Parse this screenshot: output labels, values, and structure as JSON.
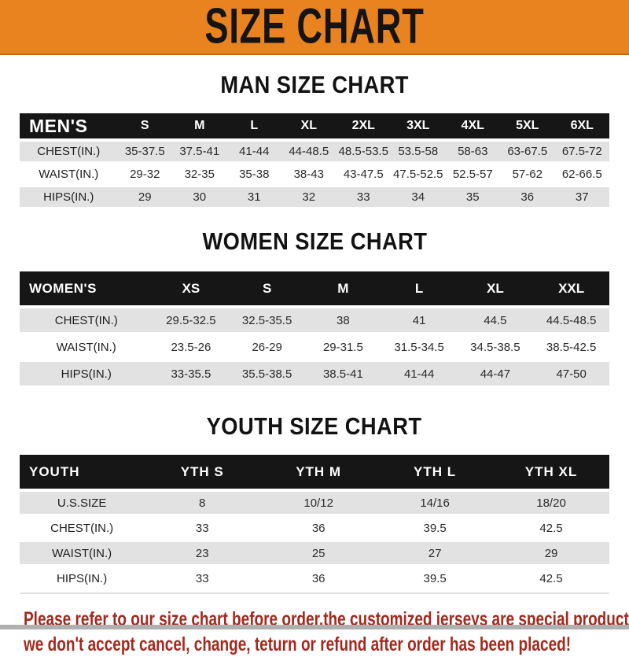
{
  "colors": {
    "banner-orange": "#E8831F",
    "banner-text": "#141414",
    "header-black": "#161616",
    "stripe-gray": "#E2E2E2",
    "footer-red": "#A2291E"
  },
  "banner": {
    "title": "SIZE CHART"
  },
  "sections": [
    {
      "id": "men",
      "heading": "MAN SIZE CHART",
      "table": {
        "header": [
          "MEN'S",
          "S",
          "M",
          "L",
          "XL",
          "2XL",
          "3XL",
          "4XL",
          "5XL",
          "6XL"
        ],
        "rows": [
          [
            "CHEST(IN.)",
            "35-37.5",
            "37.5-41",
            "41-44",
            "44-48.5",
            "48.5-53.5",
            "53.5-58",
            "58-63",
            "63-67.5",
            "67.5-72"
          ],
          [
            "WAIST(IN.)",
            "29-32",
            "32-35",
            "35-38",
            "38-43",
            "43-47.5",
            "47.5-52.5",
            "52.5-57",
            "57-62",
            "62-66.5"
          ],
          [
            "HIPS(IN.)",
            "29",
            "30",
            "31",
            "32",
            "33",
            "34",
            "35",
            "36",
            "37"
          ]
        ]
      }
    },
    {
      "id": "women",
      "heading": "WOMEN SIZE CHART",
      "table": {
        "header": [
          "WOMEN'S",
          "XS",
          "S",
          "M",
          "L",
          "XL",
          "XXL"
        ],
        "rows": [
          [
            "CHEST(IN.)",
            "29.5-32.5",
            "32.5-35.5",
            "38",
            "41",
            "44.5",
            "44.5-48.5"
          ],
          [
            "WAIST(IN.)",
            "23.5-26",
            "26-29",
            "29-31.5",
            "31.5-34.5",
            "34.5-38.5",
            "38.5-42.5"
          ],
          [
            "HIPS(IN.)",
            "33-35.5",
            "35.5-38.5",
            "38.5-41",
            "41-44",
            "44-47",
            "47-50"
          ]
        ]
      }
    },
    {
      "id": "youth",
      "heading": "YOUTH SIZE CHART",
      "table": {
        "header": [
          "YOUTH",
          "YTH S",
          "YTH M",
          "YTH L",
          "YTH XL"
        ],
        "rows": [
          [
            "U.S.SIZE",
            "8",
            "10/12",
            "14/16",
            "18/20"
          ],
          [
            "CHEST(IN.)",
            "33",
            "36",
            "39.5",
            "42.5"
          ],
          [
            "WAIST(IN.)",
            "23",
            "25",
            "27",
            "29"
          ],
          [
            "HIPS(IN.)",
            "33",
            "36",
            "39.5",
            "42.5"
          ]
        ]
      }
    }
  ],
  "footer": {
    "lines": [
      "Please refer to our size chart before order,the customized jerseys are special products,",
      "we don't accept cancel, change, teturn or refund after order has been placed!"
    ]
  }
}
